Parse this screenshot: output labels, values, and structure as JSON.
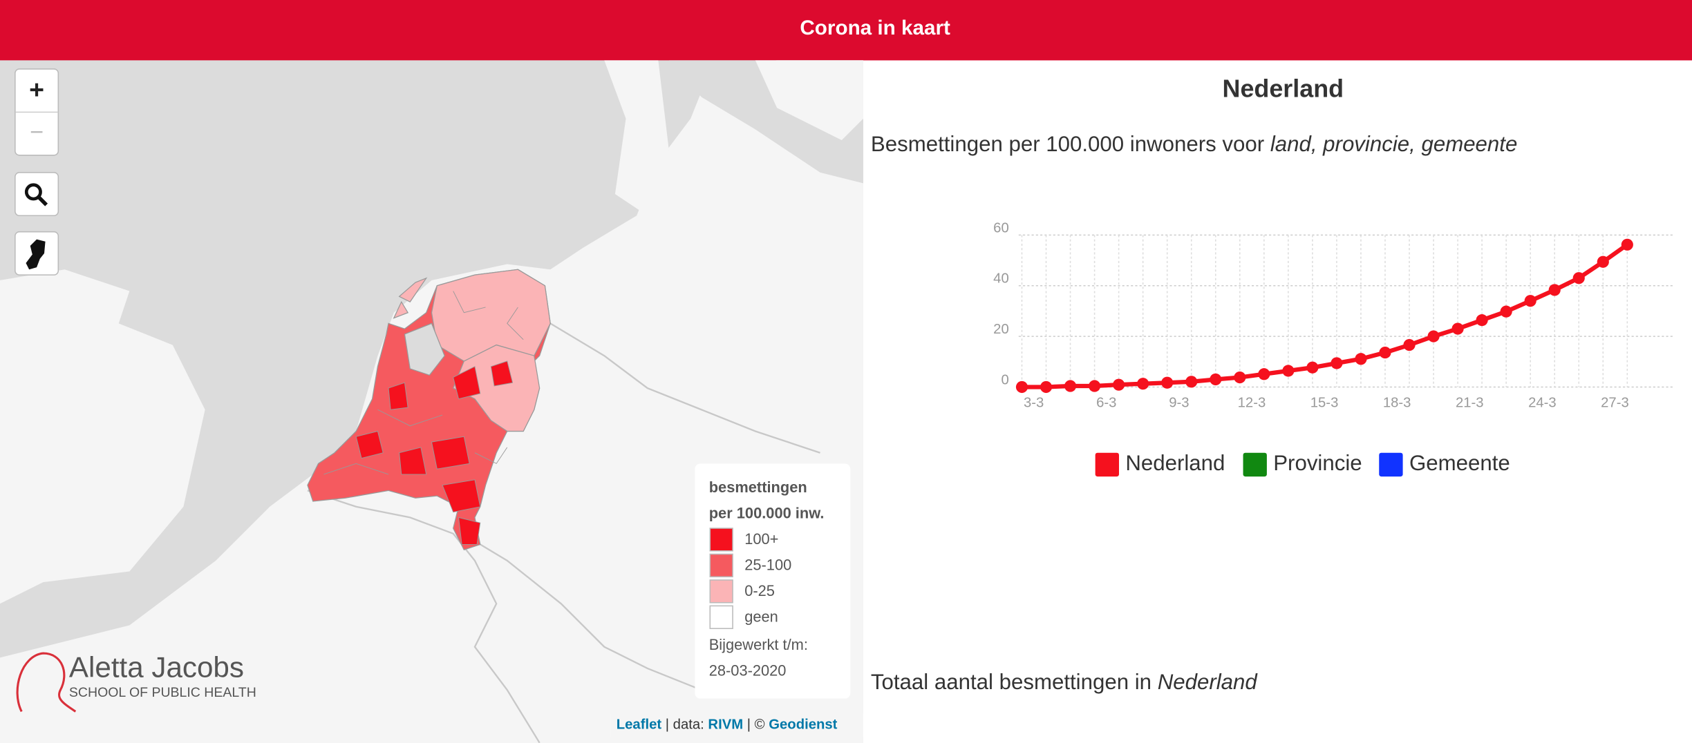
{
  "header": {
    "title": "Corona in kaart"
  },
  "map": {
    "controls": {
      "zoom_in": "+",
      "zoom_out": "−"
    },
    "legend": {
      "title": [
        "besmettingen",
        "per 100.000 inw."
      ],
      "items": [
        {
          "label": "100+",
          "color": "#f5111e"
        },
        {
          "label": "25-100",
          "color": "#f55a5f"
        },
        {
          "label": "0-25",
          "color": "#fbb4b6"
        },
        {
          "label": "geen",
          "color": "#ffffff"
        }
      ],
      "updated_label": "Bijgewerkt t/m:",
      "updated_date": "28-03-2020"
    },
    "logo": {
      "name": "Aletta Jacobs",
      "subtitle": "SCHOOL OF PUBLIC HEALTH"
    },
    "attribution": [
      "Leaflet",
      " | data: ",
      "RIVM",
      " | © ",
      "Geodienst"
    ]
  },
  "panel": {
    "title": "Nederland",
    "subtitle": "Besmettingen per 100.000 inwoners voor ",
    "subtitle_emphasis": "land, provincie, gemeente",
    "footer": "Totaal aantal besmettingen in ",
    "footer_emphasis": "Nederland"
  },
  "chart_data": {
    "type": "line",
    "categories": [
      "3-3",
      null,
      null,
      "6-3",
      null,
      null,
      "9-3",
      null,
      null,
      "12-3",
      null,
      null,
      "15-3",
      null,
      null,
      "18-3",
      null,
      null,
      "21-3",
      null,
      null,
      "24-3",
      null,
      null,
      "27-3",
      null
    ],
    "series": [
      {
        "name": "Nederland",
        "color": "#f5111e",
        "values": [
          0,
          0,
          0.4,
          0.4,
          0.9,
          1.3,
          1.7,
          2.1,
          3,
          3.8,
          5.1,
          6.4,
          7.7,
          9.4,
          11.1,
          13.6,
          16.6,
          20,
          23,
          26.4,
          29.8,
          34,
          38.3,
          43,
          49.4,
          56.2
        ]
      },
      {
        "name": "Provincie",
        "color": "#118811",
        "values": [
          null,
          null,
          null,
          null,
          null,
          null,
          null,
          null,
          null,
          null,
          null,
          null,
          null,
          null,
          null,
          null,
          null,
          null,
          null,
          null,
          null,
          null,
          null,
          null,
          null,
          null
        ]
      },
      {
        "name": "Gemeente",
        "color": "#1133ff",
        "values": [
          null,
          null,
          null,
          null,
          null,
          null,
          null,
          null,
          null,
          null,
          null,
          null,
          null,
          null,
          null,
          null,
          null,
          null,
          null,
          null,
          null,
          null,
          null,
          null,
          null,
          null
        ]
      }
    ],
    "ylim": [
      0,
      60
    ],
    "yticks": [
      0,
      20,
      40,
      60
    ],
    "grid": true
  }
}
